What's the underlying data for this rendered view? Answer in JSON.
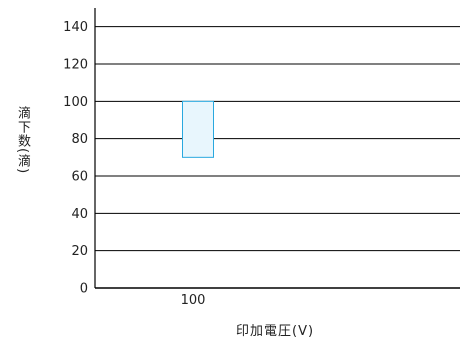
{
  "chart_data": {
    "type": "bar",
    "title": "",
    "xlabel": "印加電圧(V)",
    "ylabel": "滴下数(滴)",
    "categories": [
      "100"
    ],
    "series": [
      {
        "ranges": [
          {
            "x": "100",
            "low": 70,
            "high": 100
          }
        ]
      }
    ],
    "ylim": [
      0,
      150
    ],
    "yticks": [
      0,
      20,
      40,
      60,
      80,
      100,
      120,
      140
    ],
    "grid": true,
    "colors": {
      "box_fill": "#e8f6fd",
      "box_stroke": "#29a8df",
      "grid": "#000000",
      "text": "#222222"
    }
  }
}
